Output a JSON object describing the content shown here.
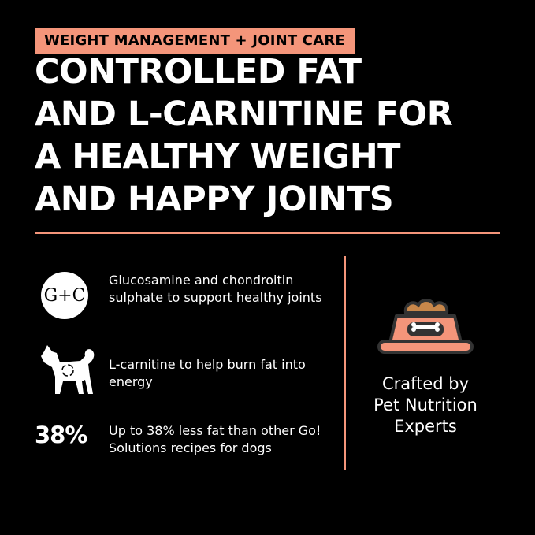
{
  "badge": "WEIGHT MANAGEMENT + JOINT CARE",
  "headline": [
    "CONTROLLED FAT",
    "AND L-CARNITINE FOR",
    "A HEALTHY WEIGHT",
    "AND HAPPY JOINTS"
  ],
  "features": [
    {
      "icon": "glucosamine-chondroitin-icon",
      "icon_text": "G+C",
      "text": "Glucosamine and chondroitin sulphate to support healthy joints"
    },
    {
      "icon": "dog-metabolism-icon",
      "text": "L-carnitine to help burn fat into energy"
    },
    {
      "icon_text": "38%",
      "text": "Up to 38% less fat than other Go! Solutions recipes for dogs"
    }
  ],
  "crafted": {
    "icon": "food-bowl-icon",
    "text": [
      "Crafted by",
      "Pet Nutrition",
      "Experts"
    ]
  },
  "colors": {
    "accent": "#f4957a",
    "background": "#000000",
    "kibble": "#c8874a"
  }
}
